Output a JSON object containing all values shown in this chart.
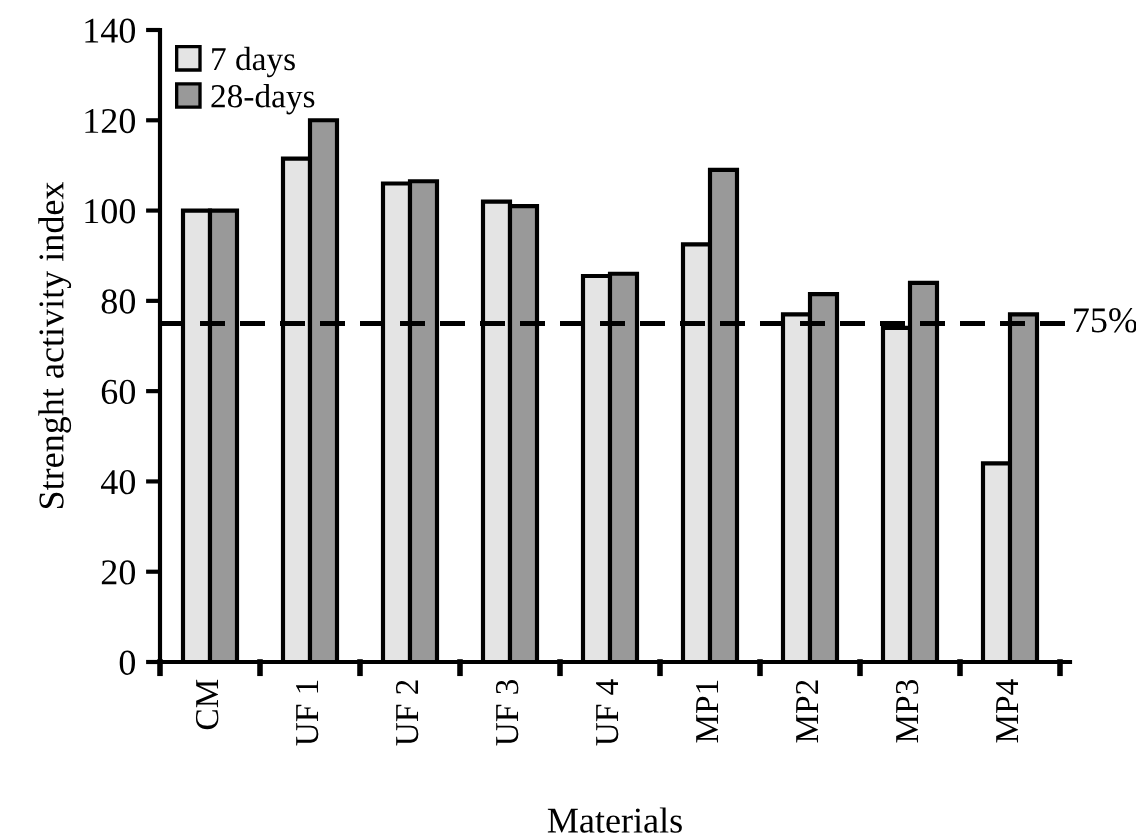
{
  "chart_data": {
    "type": "bar",
    "xlabel": "Materials",
    "ylabel": "Strenght activity index",
    "categories": [
      "CM",
      "UF 1",
      "UF 2",
      "UF 3",
      "UF 4",
      "MP1",
      "MP2",
      "MP3",
      "MP4"
    ],
    "series": [
      {
        "name": "7 days",
        "color": "#e4e4e4",
        "values": [
          100,
          111.5,
          106,
          102,
          85.5,
          92.5,
          77,
          74,
          44
        ]
      },
      {
        "name": "28-days",
        "color": "#999999",
        "values": [
          100,
          120,
          106.5,
          101,
          86,
          109,
          81.5,
          84,
          77
        ]
      }
    ],
    "ylim": [
      0,
      140
    ],
    "yticks": [
      0,
      20,
      40,
      60,
      80,
      100,
      120,
      140
    ],
    "grid": false,
    "legend": "top left",
    "ref_lines": [
      {
        "axis": "y",
        "value": 75,
        "label": "75%",
        "color": "#000000",
        "line_style": "dashed"
      }
    ]
  }
}
